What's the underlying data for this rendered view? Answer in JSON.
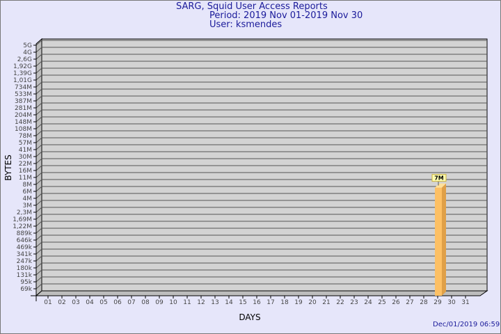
{
  "header": {
    "title": "SARG, Squid User Access Reports",
    "period": "Period: 2019 Nov 01-2019 Nov 30",
    "user": "User: ksmendes"
  },
  "footer": {
    "timestamp": "Dec/01/2019 06:59"
  },
  "colors": {
    "background": "#e6e6fa",
    "title": "#1a1a9a",
    "wall": "#d3d3d3",
    "bar": "#fdc064",
    "bar_side": "#e0a048",
    "label_box": "#ffffb0"
  },
  "chart_data": {
    "type": "bar",
    "style": "3d",
    "xlabel": "DAYS",
    "ylabel": "BYTES",
    "yscale": "log",
    "grid": true,
    "yticks": [
      "5G",
      "4G",
      "2,6G",
      "1,92G",
      "1,39G",
      "1,01G",
      "734M",
      "533M",
      "387M",
      "281M",
      "204M",
      "148M",
      "108M",
      "78M",
      "57M",
      "41M",
      "30M",
      "22M",
      "16M",
      "11M",
      "8M",
      "6M",
      "4M",
      "3M",
      "2,3M",
      "1,69M",
      "1,22M",
      "889k",
      "646k",
      "469k",
      "341k",
      "247k",
      "180k",
      "131k",
      "95k",
      "69k"
    ],
    "categories": [
      "01",
      "02",
      "03",
      "04",
      "05",
      "06",
      "07",
      "08",
      "09",
      "10",
      "11",
      "12",
      "13",
      "14",
      "15",
      "16",
      "17",
      "18",
      "19",
      "20",
      "21",
      "22",
      "23",
      "24",
      "25",
      "26",
      "27",
      "28",
      "29",
      "30",
      "31"
    ],
    "values": [
      0,
      0,
      0,
      0,
      0,
      0,
      0,
      0,
      0,
      0,
      0,
      0,
      0,
      0,
      0,
      0,
      0,
      0,
      0,
      0,
      0,
      0,
      0,
      0,
      0,
      0,
      0,
      0,
      7000000,
      0,
      0
    ],
    "data_labels": [
      {
        "category": "29",
        "label": "7M"
      }
    ]
  }
}
